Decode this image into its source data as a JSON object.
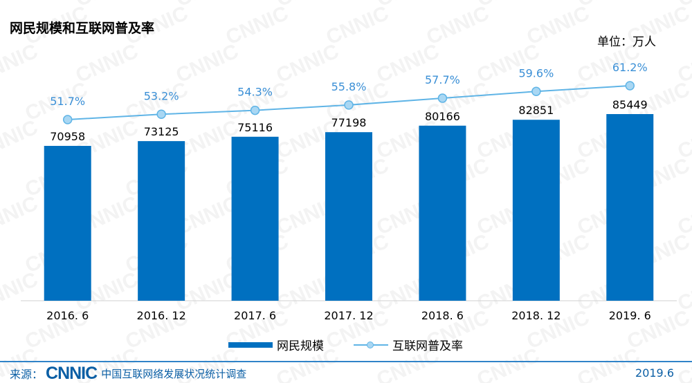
{
  "title": "网民规模和互联网普及率",
  "unit_label": "单位：万人",
  "watermark_text": "CNNIC",
  "legend": {
    "bar_label": "网民规模",
    "line_label": "互联网普及率"
  },
  "footer": {
    "source_prefix": "来源：",
    "logo_text": "CNNIC",
    "survey_name": "中国互联网络发展状况统计调查",
    "date": "2019.6"
  },
  "colors": {
    "bar": "#0070c0",
    "line": "#5fb4e6",
    "marker_fill": "#a9d7f3",
    "percent_label": "#3a8fd6",
    "source_text": "#0b5fa5"
  },
  "chart_data": {
    "type": "bar",
    "categories": [
      "2016. 6",
      "2016. 12",
      "2017. 6",
      "2017. 12",
      "2018. 6",
      "2018. 12",
      "2019. 6"
    ],
    "series": [
      {
        "name": "网民规模",
        "type": "bar",
        "values": [
          70958,
          73125,
          75116,
          77198,
          80166,
          82851,
          85449
        ],
        "value_labels": [
          "70958",
          "73125",
          "75116",
          "77198",
          "80166",
          "82851",
          "85449"
        ]
      },
      {
        "name": "互联网普及率",
        "type": "line",
        "values": [
          51.7,
          53.2,
          54.3,
          55.8,
          57.7,
          59.6,
          61.2
        ],
        "value_labels": [
          "51.7%",
          "53.2%",
          "54.3%",
          "55.8%",
          "57.7%",
          "59.6%",
          "61.2%"
        ]
      }
    ],
    "ylim": [
      0,
      100000
    ],
    "grid": false,
    "legend_position": "bottom"
  }
}
